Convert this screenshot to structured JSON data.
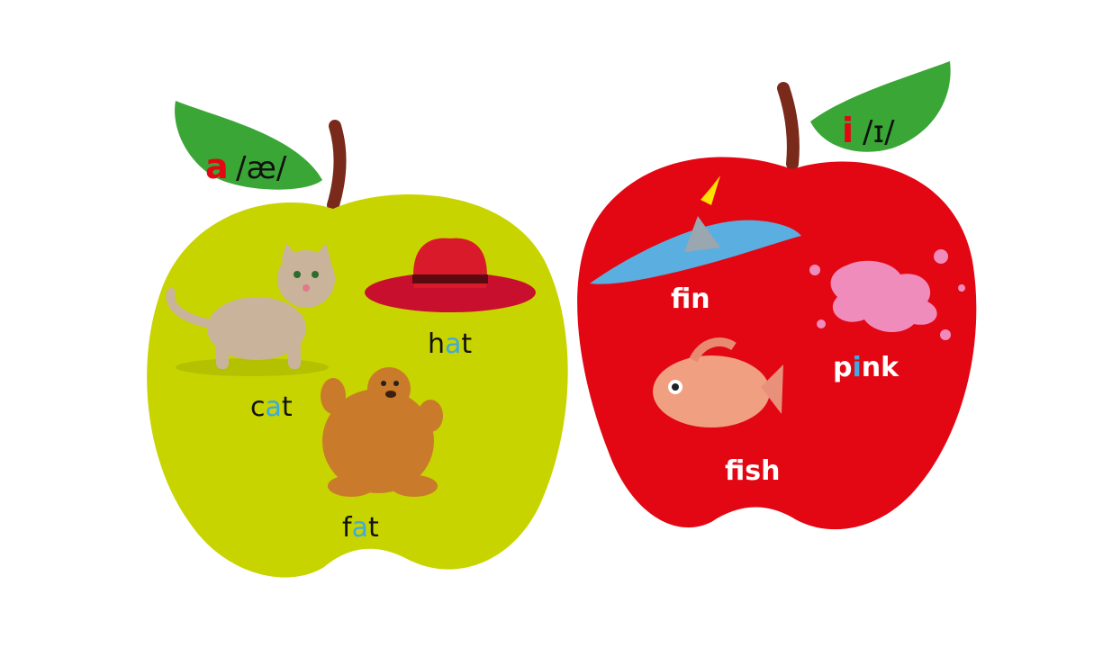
{
  "apples": [
    {
      "id": "a",
      "letter": "a",
      "ipa": "/æ/",
      "body_color": "#c8d400",
      "leaf_color": "#3aa636",
      "letter_color": "#e30613",
      "words": [
        {
          "pre": "c",
          "vowel": "a",
          "post": "t",
          "picture": "cat"
        },
        {
          "pre": "h",
          "vowel": "a",
          "post": "t",
          "picture": "hat"
        },
        {
          "pre": "f",
          "vowel": "a",
          "post": "t",
          "picture": "bear"
        }
      ]
    },
    {
      "id": "i",
      "letter": "i",
      "ipa": "/ɪ/",
      "body_color": "#e30613",
      "leaf_color": "#3aa636",
      "letter_color": "#e30613",
      "words": [
        {
          "pre": "f",
          "vowel": "i",
          "post": "n",
          "picture": "shark-fin-in-water"
        },
        {
          "pre": "p",
          "vowel": "i",
          "post": "nk",
          "picture": "pink-paint-splash"
        },
        {
          "pre": "f",
          "vowel": "i",
          "post": "sh",
          "picture": "fish"
        }
      ]
    }
  ],
  "colors": {
    "vowel_highlight": "#3fa9e0",
    "word_dark": "#111111",
    "word_light": "#ffffff",
    "stem": "#7a2a1a",
    "arrow": "#ffe000"
  }
}
